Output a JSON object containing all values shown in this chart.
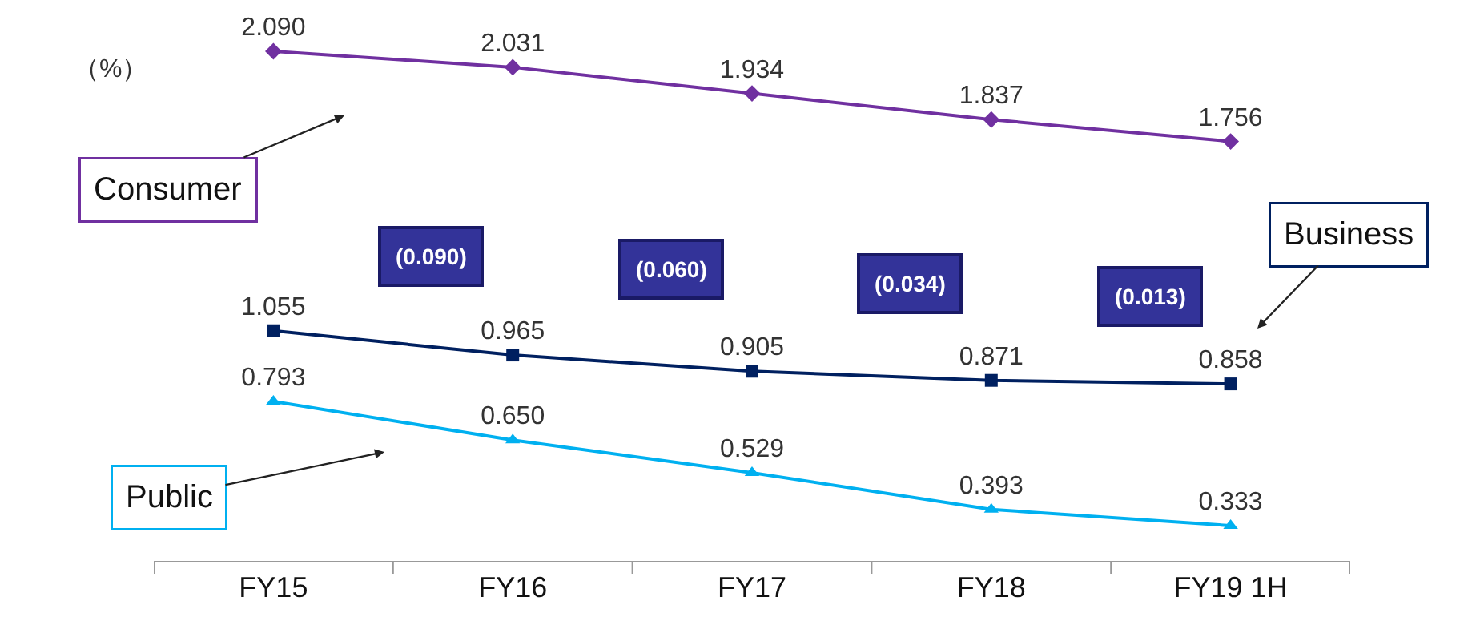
{
  "chart_data": {
    "type": "line",
    "ylabel": "（%）",
    "categories": [
      "FY15",
      "FY16",
      "FY17",
      "FY18",
      "FY19 1H"
    ],
    "series": [
      {
        "name": "Consumer",
        "color": "#7030a0",
        "marker": "diamond",
        "values": [
          2.09,
          2.031,
          1.934,
          1.837,
          1.756
        ],
        "value_labels": [
          "2.090",
          "2.031",
          "1.934",
          "1.837",
          "1.756"
        ]
      },
      {
        "name": "Business",
        "color": "#002060",
        "marker": "square",
        "values": [
          1.055,
          0.965,
          0.905,
          0.871,
          0.858
        ],
        "value_labels": [
          "1.055",
          "0.965",
          "0.905",
          "0.871",
          "0.858"
        ]
      },
      {
        "name": "Public",
        "color": "#00b0f0",
        "marker": "triangle",
        "values": [
          0.793,
          0.65,
          0.529,
          0.393,
          0.333
        ],
        "value_labels": [
          "0.793",
          "0.650",
          "0.529",
          "0.393",
          "0.333"
        ]
      }
    ],
    "annotations": [
      "(0.090)",
      "(0.060)",
      "(0.034)",
      "(0.013)"
    ],
    "tick_labels": "x",
    "grid": false,
    "legend": false
  }
}
